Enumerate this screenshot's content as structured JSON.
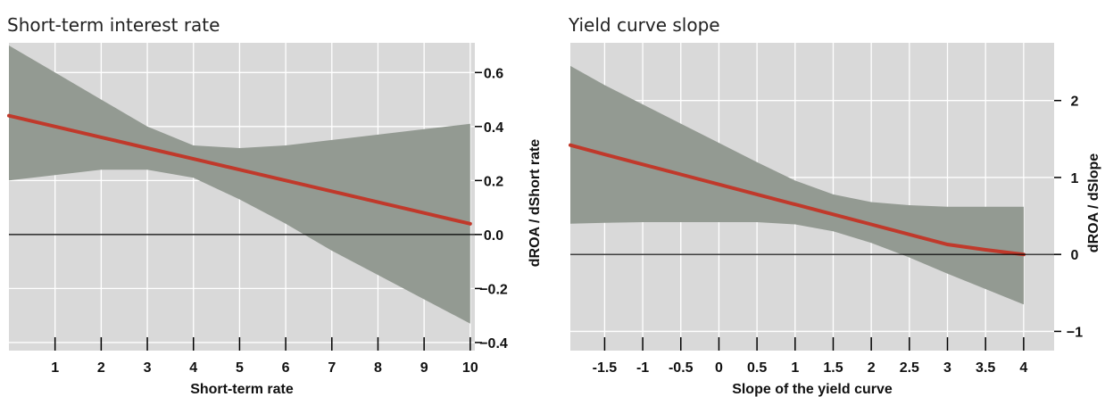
{
  "colors": {
    "panel_bg": "#d9d9d9",
    "band": "#939a92",
    "line": "#c0392b",
    "grid": "#ffffff",
    "zero_line": "#000000"
  },
  "chart_data": [
    {
      "type": "line",
      "title": "Short-term interest rate",
      "xlabel": "Short-term rate",
      "ylabel": "dROA / dShort rate",
      "xlim": [
        0,
        10.1
      ],
      "ylim": [
        -0.43,
        0.71
      ],
      "xticks": [
        1,
        2,
        3,
        4,
        5,
        6,
        7,
        8,
        9,
        10
      ],
      "xtick_labels": [
        "1",
        "2",
        "3",
        "4",
        "5",
        "6",
        "7",
        "8",
        "9",
        "10"
      ],
      "yticks": [
        0.6,
        0.4,
        0.2,
        0.0,
        -0.2,
        -0.4
      ],
      "ytick_labels": [
        "0.6",
        "0.4",
        "0.2",
        "0.0",
        "−0.2",
        "−0.4"
      ],
      "grid": true,
      "series": [
        {
          "x": [
            0,
            1,
            2,
            3,
            4,
            5,
            6,
            7,
            8,
            9,
            10
          ],
          "estimate": [
            0.44,
            0.4,
            0.36,
            0.32,
            0.28,
            0.24,
            0.2,
            0.16,
            0.12,
            0.08,
            0.04
          ],
          "upper": [
            0.7,
            0.6,
            0.5,
            0.4,
            0.33,
            0.32,
            0.33,
            0.35,
            0.37,
            0.39,
            0.41
          ],
          "lower": [
            0.2,
            0.22,
            0.24,
            0.24,
            0.21,
            0.13,
            0.04,
            -0.06,
            -0.15,
            -0.24,
            -0.33
          ]
        }
      ]
    },
    {
      "type": "line",
      "title": "Yield curve slope",
      "xlabel": "Slope of the yield curve",
      "ylabel": "dROA / dSlope",
      "xlim": [
        -1.95,
        4.4
      ],
      "ylim": [
        -1.25,
        2.75
      ],
      "xticks": [
        -1.5,
        -1,
        -0.5,
        0,
        0.5,
        1,
        1.5,
        2,
        2.5,
        3,
        3.5,
        4
      ],
      "xtick_labels": [
        "-1.5",
        "-1",
        "-0.5",
        "0",
        "0.5",
        "1",
        "1.5",
        "2",
        "2.5",
        "3",
        "3.5",
        "4"
      ],
      "yticks": [
        2,
        1,
        0,
        -1
      ],
      "ytick_labels": [
        "2",
        "1",
        "0",
        "−1"
      ],
      "grid": true,
      "series": [
        {
          "x": [
            -1.95,
            -1.5,
            -1,
            -0.5,
            0,
            0.5,
            1,
            1.5,
            2,
            2.5,
            3,
            3.5,
            4
          ],
          "estimate": [
            1.42,
            1.3,
            1.17,
            1.04,
            0.91,
            0.78,
            0.65,
            0.52,
            0.39,
            0.26,
            0.13,
            0.06,
            0.0
          ],
          "upper": [
            2.45,
            2.2,
            1.95,
            1.7,
            1.45,
            1.2,
            0.96,
            0.78,
            0.68,
            0.64,
            0.62,
            0.62,
            0.62
          ],
          "lower": [
            0.4,
            0.41,
            0.42,
            0.42,
            0.42,
            0.42,
            0.39,
            0.3,
            0.15,
            -0.04,
            -0.25,
            -0.45,
            -0.65
          ]
        }
      ]
    }
  ]
}
